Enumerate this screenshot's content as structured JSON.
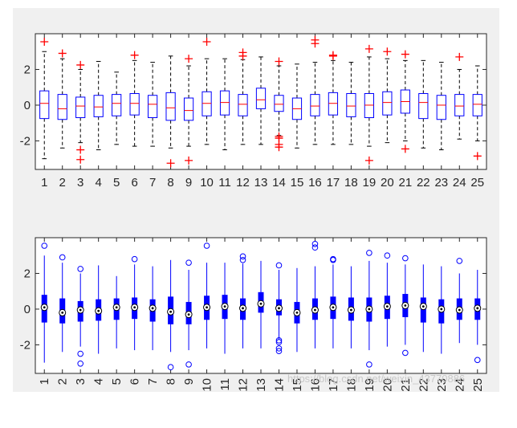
{
  "watermark": "https://blog.csdn.net/weixin_43770886",
  "colors": {
    "background": "#f0f0f0",
    "axes_fill": "#ffffff",
    "box_outline_classic": "#0000ff",
    "median_classic": "#ff0000",
    "whisker_classic": "#000000",
    "outlier_classic": "#ff0000",
    "compact_color": "#0000ff"
  },
  "chart_data": [
    {
      "type": "boxplot",
      "style": "classic",
      "title": "",
      "xlabel": "",
      "ylabel": "",
      "categories": [
        "1",
        "2",
        "3",
        "4",
        "5",
        "6",
        "7",
        "8",
        "9",
        "10",
        "11",
        "12",
        "13",
        "14",
        "15",
        "16",
        "17",
        "18",
        "19",
        "20",
        "21",
        "22",
        "23",
        "24",
        "25"
      ],
      "ylim": [
        -3.6,
        4.0
      ],
      "yticks": [
        -2,
        0,
        2
      ],
      "ytick_labels": [
        "-2",
        "0",
        "2"
      ],
      "xtick_rotation": 0,
      "outlier_marker": "+",
      "grid": false,
      "boxes": [
        {
          "label": "1",
          "q1": -0.75,
          "median": 0.1,
          "q3": 0.8,
          "wlow": -3.0,
          "whigh": 3.0,
          "outliers": [
            3.55
          ]
        },
        {
          "label": "2",
          "q1": -0.8,
          "median": -0.2,
          "q3": 0.6,
          "wlow": -2.4,
          "whigh": 2.6,
          "outliers": [
            2.9
          ]
        },
        {
          "label": "3",
          "q1": -0.7,
          "median": -0.05,
          "q3": 0.45,
          "wlow": -2.1,
          "whigh": 2.0,
          "outliers": [
            2.25,
            -2.5,
            -3.05
          ]
        },
        {
          "label": "4",
          "q1": -0.65,
          "median": -0.1,
          "q3": 0.55,
          "wlow": -2.5,
          "whigh": 2.45,
          "outliers": []
        },
        {
          "label": "5",
          "q1": -0.6,
          "median": 0.1,
          "q3": 0.6,
          "wlow": -2.2,
          "whigh": 1.85,
          "outliers": []
        },
        {
          "label": "6",
          "q1": -0.55,
          "median": 0.1,
          "q3": 0.65,
          "wlow": -2.3,
          "whigh": 2.5,
          "outliers": [
            2.8
          ]
        },
        {
          "label": "7",
          "q1": -0.7,
          "median": 0.05,
          "q3": 0.55,
          "wlow": -2.3,
          "whigh": 2.4,
          "outliers": []
        },
        {
          "label": "8",
          "q1": -0.85,
          "median": -0.15,
          "q3": 0.7,
          "wlow": -2.4,
          "whigh": 2.75,
          "outliers": [
            -3.25
          ]
        },
        {
          "label": "9",
          "q1": -0.85,
          "median": -0.3,
          "q3": 0.4,
          "wlow": -2.3,
          "whigh": 2.2,
          "outliers": [
            2.6,
            -3.1
          ]
        },
        {
          "label": "10",
          "q1": -0.6,
          "median": 0.1,
          "q3": 0.75,
          "wlow": -2.2,
          "whigh": 2.6,
          "outliers": [
            3.55
          ]
        },
        {
          "label": "11",
          "q1": -0.55,
          "median": 0.15,
          "q3": 0.8,
          "wlow": -2.5,
          "whigh": 2.6,
          "outliers": []
        },
        {
          "label": "12",
          "q1": -0.6,
          "median": 0.05,
          "q3": 0.6,
          "wlow": -2.2,
          "whigh": 2.55,
          "outliers": [
            2.95,
            2.75
          ]
        },
        {
          "label": "13",
          "q1": -0.2,
          "median": 0.3,
          "q3": 0.95,
          "wlow": -2.2,
          "whigh": 2.7,
          "outliers": []
        },
        {
          "label": "14",
          "q1": -0.35,
          "median": 0.05,
          "q3": 0.55,
          "wlow": -1.7,
          "whigh": 2.2,
          "outliers": [
            2.45,
            -1.75,
            -1.85,
            -2.2,
            -2.35
          ]
        },
        {
          "label": "15",
          "q1": -0.8,
          "median": -0.2,
          "q3": 0.4,
          "wlow": -2.4,
          "whigh": 2.3,
          "outliers": []
        },
        {
          "label": "16",
          "q1": -0.6,
          "median": -0.05,
          "q3": 0.6,
          "wlow": -2.2,
          "whigh": 2.4,
          "outliers": [
            3.45,
            3.65
          ]
        },
        {
          "label": "17",
          "q1": -0.55,
          "median": 0.1,
          "q3": 0.7,
          "wlow": -2.2,
          "whigh": 2.5,
          "outliers": [
            2.75,
            2.8
          ]
        },
        {
          "label": "18",
          "q1": -0.65,
          "median": -0.05,
          "q3": 0.65,
          "wlow": -2.2,
          "whigh": 2.4,
          "outliers": []
        },
        {
          "label": "19",
          "q1": -0.7,
          "median": 0.0,
          "q3": 0.65,
          "wlow": -2.3,
          "whigh": 2.7,
          "outliers": [
            3.15,
            -3.1
          ]
        },
        {
          "label": "20",
          "q1": -0.55,
          "median": 0.15,
          "q3": 0.75,
          "wlow": -2.1,
          "whigh": 2.6,
          "outliers": [
            3.0
          ]
        },
        {
          "label": "21",
          "q1": -0.45,
          "median": 0.2,
          "q3": 0.85,
          "wlow": -2.0,
          "whigh": 2.5,
          "outliers": [
            2.85,
            -2.45
          ]
        },
        {
          "label": "22",
          "q1": -0.75,
          "median": 0.15,
          "q3": 0.65,
          "wlow": -2.4,
          "whigh": 2.5,
          "outliers": []
        },
        {
          "label": "23",
          "q1": -0.8,
          "median": 0.0,
          "q3": 0.55,
          "wlow": -2.5,
          "whigh": 2.4,
          "outliers": []
        },
        {
          "label": "24",
          "q1": -0.6,
          "median": -0.05,
          "q3": 0.6,
          "wlow": -1.9,
          "whigh": 2.0,
          "outliers": [
            2.7
          ]
        },
        {
          "label": "25",
          "q1": -0.6,
          "median": 0.05,
          "q3": 0.6,
          "wlow": -2.0,
          "whigh": 2.2,
          "outliers": [
            -2.85
          ]
        }
      ]
    },
    {
      "type": "boxplot",
      "style": "compact",
      "title": "",
      "xlabel": "",
      "ylabel": "",
      "categories": [
        "1",
        "2",
        "3",
        "4",
        "5",
        "6",
        "7",
        "8",
        "9",
        "10",
        "11",
        "12",
        "13",
        "14",
        "15",
        "16",
        "17",
        "18",
        "19",
        "20",
        "21",
        "22",
        "23",
        "24",
        "25"
      ],
      "ylim": [
        -3.6,
        4.0
      ],
      "yticks": [
        -2,
        0,
        2
      ],
      "ytick_labels": [
        "-2",
        "0",
        "2"
      ],
      "xtick_rotation": -90,
      "outlier_marker": "o",
      "grid": false,
      "boxes": [
        {
          "label": "1",
          "q1": -0.75,
          "median": 0.1,
          "q3": 0.8,
          "wlow": -3.0,
          "whigh": 3.0,
          "outliers": [
            3.55
          ]
        },
        {
          "label": "2",
          "q1": -0.8,
          "median": -0.2,
          "q3": 0.6,
          "wlow": -2.4,
          "whigh": 2.6,
          "outliers": [
            2.9
          ]
        },
        {
          "label": "3",
          "q1": -0.7,
          "median": -0.05,
          "q3": 0.45,
          "wlow": -2.1,
          "whigh": 2.0,
          "outliers": [
            2.25,
            -2.5,
            -3.05
          ]
        },
        {
          "label": "4",
          "q1": -0.65,
          "median": -0.1,
          "q3": 0.55,
          "wlow": -2.5,
          "whigh": 2.45,
          "outliers": []
        },
        {
          "label": "5",
          "q1": -0.6,
          "median": 0.1,
          "q3": 0.6,
          "wlow": -2.2,
          "whigh": 1.85,
          "outliers": []
        },
        {
          "label": "6",
          "q1": -0.55,
          "median": 0.1,
          "q3": 0.65,
          "wlow": -2.3,
          "whigh": 2.5,
          "outliers": [
            2.8
          ]
        },
        {
          "label": "7",
          "q1": -0.7,
          "median": 0.05,
          "q3": 0.55,
          "wlow": -2.3,
          "whigh": 2.4,
          "outliers": []
        },
        {
          "label": "8",
          "q1": -0.85,
          "median": -0.15,
          "q3": 0.7,
          "wlow": -2.4,
          "whigh": 2.75,
          "outliers": [
            -3.25
          ]
        },
        {
          "label": "9",
          "q1": -0.85,
          "median": -0.3,
          "q3": 0.4,
          "wlow": -2.3,
          "whigh": 2.2,
          "outliers": [
            2.6,
            -3.1
          ]
        },
        {
          "label": "10",
          "q1": -0.6,
          "median": 0.1,
          "q3": 0.75,
          "wlow": -2.2,
          "whigh": 2.6,
          "outliers": [
            3.55
          ]
        },
        {
          "label": "11",
          "q1": -0.55,
          "median": 0.15,
          "q3": 0.8,
          "wlow": -2.5,
          "whigh": 2.6,
          "outliers": []
        },
        {
          "label": "12",
          "q1": -0.6,
          "median": 0.05,
          "q3": 0.6,
          "wlow": -2.2,
          "whigh": 2.55,
          "outliers": [
            2.95,
            2.75
          ]
        },
        {
          "label": "13",
          "q1": -0.2,
          "median": 0.3,
          "q3": 0.95,
          "wlow": -2.2,
          "whigh": 2.7,
          "outliers": []
        },
        {
          "label": "14",
          "q1": -0.35,
          "median": 0.05,
          "q3": 0.55,
          "wlow": -1.7,
          "whigh": 2.2,
          "outliers": [
            2.45,
            -1.75,
            -1.85,
            -2.2,
            -2.35
          ]
        },
        {
          "label": "15",
          "q1": -0.8,
          "median": -0.2,
          "q3": 0.4,
          "wlow": -2.4,
          "whigh": 2.3,
          "outliers": []
        },
        {
          "label": "16",
          "q1": -0.6,
          "median": -0.05,
          "q3": 0.6,
          "wlow": -2.2,
          "whigh": 2.4,
          "outliers": [
            3.45,
            3.65
          ]
        },
        {
          "label": "17",
          "q1": -0.55,
          "median": 0.1,
          "q3": 0.7,
          "wlow": -2.2,
          "whigh": 2.5,
          "outliers": [
            2.75,
            2.8
          ]
        },
        {
          "label": "18",
          "q1": -0.65,
          "median": -0.05,
          "q3": 0.65,
          "wlow": -2.2,
          "whigh": 2.4,
          "outliers": []
        },
        {
          "label": "19",
          "q1": -0.7,
          "median": 0.0,
          "q3": 0.65,
          "wlow": -2.3,
          "whigh": 2.7,
          "outliers": [
            3.15,
            -3.1
          ]
        },
        {
          "label": "20",
          "q1": -0.55,
          "median": 0.15,
          "q3": 0.75,
          "wlow": -2.1,
          "whigh": 2.6,
          "outliers": [
            3.0
          ]
        },
        {
          "label": "21",
          "q1": -0.45,
          "median": 0.2,
          "q3": 0.85,
          "wlow": -2.0,
          "whigh": 2.5,
          "outliers": [
            2.85,
            -2.45
          ]
        },
        {
          "label": "22",
          "q1": -0.75,
          "median": 0.15,
          "q3": 0.65,
          "wlow": -2.4,
          "whigh": 2.5,
          "outliers": []
        },
        {
          "label": "23",
          "q1": -0.8,
          "median": 0.0,
          "q3": 0.55,
          "wlow": -2.5,
          "whigh": 2.4,
          "outliers": []
        },
        {
          "label": "24",
          "q1": -0.6,
          "median": -0.05,
          "q3": 0.6,
          "wlow": -1.9,
          "whigh": 2.0,
          "outliers": [
            2.7
          ]
        },
        {
          "label": "25",
          "q1": -0.6,
          "median": 0.05,
          "q3": 0.6,
          "wlow": -2.0,
          "whigh": 2.2,
          "outliers": [
            -2.85
          ]
        }
      ]
    }
  ]
}
